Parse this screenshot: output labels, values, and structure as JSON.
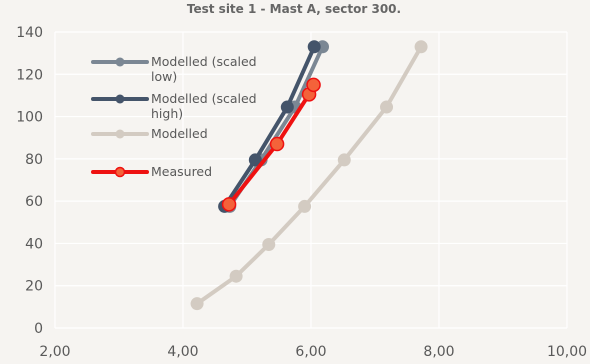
{
  "chart_data": {
    "type": "scatter",
    "title": "Test site 1 - Mast A, sector 300.",
    "xlabel": "",
    "ylabel": "",
    "xlim": [
      2,
      10
    ],
    "ylim": [
      0,
      140
    ],
    "x_ticks": [
      "2,00",
      "4,00",
      "6,00",
      "8,00",
      "10,00"
    ],
    "y_ticks": [
      "0",
      "20",
      "40",
      "60",
      "80",
      "100",
      "120",
      "140"
    ],
    "grid": true,
    "legend_position": "top-left",
    "series": [
      {
        "name": "Modelled",
        "color": "#d3cbc2",
        "points": [
          [
            4.22,
            11.5
          ],
          [
            4.83,
            24.5
          ],
          [
            5.34,
            39.5
          ],
          [
            5.9,
            57.5
          ],
          [
            6.52,
            79.5
          ],
          [
            7.18,
            104.5
          ],
          [
            7.72,
            133
          ]
        ]
      },
      {
        "name": "Modelled (scaled low)",
        "color": "#7b8794",
        "points": [
          [
            4.73,
            57.5
          ],
          [
            5.22,
            79.5
          ],
          [
            5.75,
            104.5
          ],
          [
            6.18,
            133
          ]
        ]
      },
      {
        "name": "Modelled (scaled high)",
        "color": "#44546a",
        "points": [
          [
            4.65,
            57.5
          ],
          [
            5.13,
            79.5
          ],
          [
            5.63,
            104.5
          ],
          [
            6.05,
            133
          ]
        ]
      },
      {
        "name": "Measured",
        "color": "#ee1111",
        "marker_fill": "#f4623a",
        "points": [
          [
            4.72,
            58.5
          ],
          [
            5.47,
            87
          ],
          [
            5.97,
            110.5
          ],
          [
            6.04,
            115
          ]
        ]
      }
    ],
    "legend": [
      {
        "label_lines": [
          "Modelled (scaled",
          "low)"
        ],
        "color": "#7b8794"
      },
      {
        "label_lines": [
          "Modelled (scaled",
          "high)"
        ],
        "color": "#44546a"
      },
      {
        "label_lines": [
          "Modelled"
        ],
        "color": "#d3cbc2"
      },
      {
        "label_lines": [
          "Measured"
        ],
        "color": "#ee1111",
        "marker_fill": "#f4623a"
      }
    ]
  }
}
